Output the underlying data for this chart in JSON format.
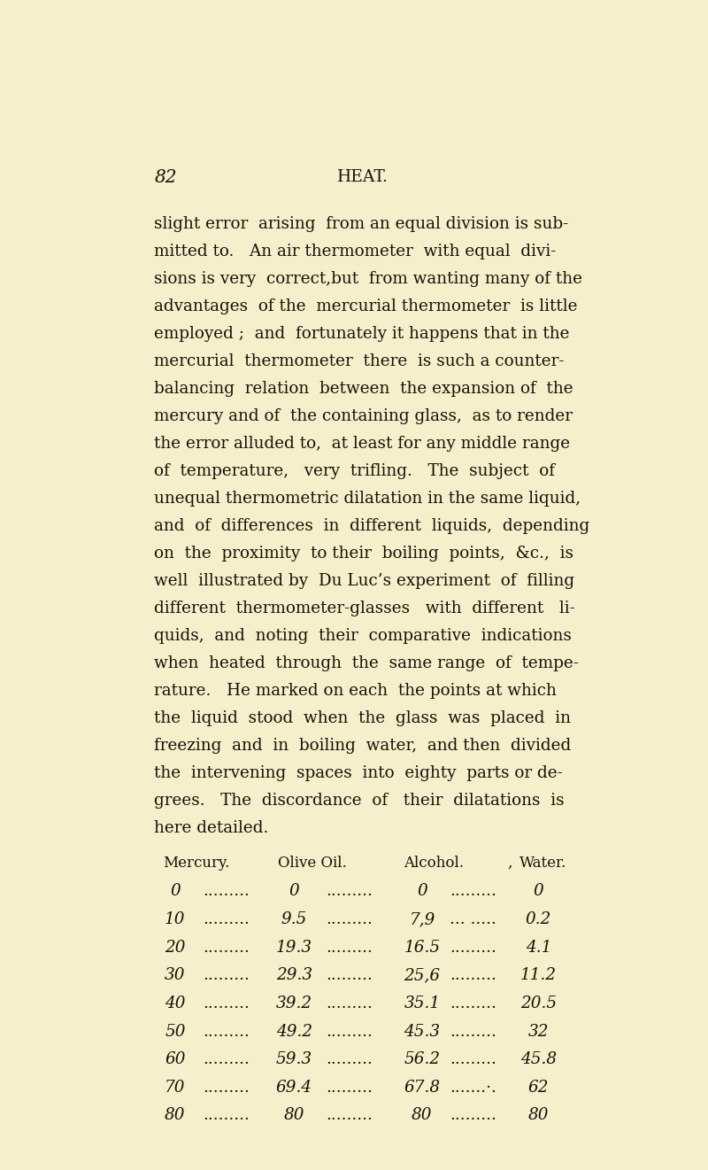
{
  "background_color": "#f5efcc",
  "page_number": "82",
  "header": "HEAT.",
  "body_text": [
    "slight error  arising  from an equal division is sub-",
    "mitted to.   An air thermometer  with equal  divi-",
    "sions is very  correct,but  from wanting many of the",
    "advantages  of the  mercurial thermometer  is little",
    "employed ;  and  fortunately it happens that in the",
    "mercurial  thermometer  there  is such a counter-",
    "balancing  relation  between  the expansion of  the",
    "mercury and of  the containing glass,  as to render",
    "the error alluded to,  at least for any middle range",
    "of  temperature,   very  trifling.   The  subject  of",
    "unequal thermometric dilatation in the same liquid,",
    "and  of  differences  in  different  liquids,  depending",
    "on  the  proximity  to their  boiling  points,  &c.,  is",
    "well  illustrated by  Du Luc’s experiment  of  filling",
    "different  thermometer-glasses   with  different   li-",
    "quids,  and  noting  their  comparative  indications",
    "when  heated  through  the  same range  of  tempe-",
    "rature.   He marked on each  the points at which",
    "the  liquid  stood  when  the  glass  was  placed  in",
    "freezing  and  in  boiling  water,  and then  divided",
    "the  intervening  spaces  into  eighty  parts or de-",
    "grees.   The  discordance  of   their  dilatations  is",
    "here detailed."
  ],
  "table_headers": [
    "Mercury.",
    "Olive Oil.",
    "Alcohol.",
    "Water."
  ],
  "table_data": [
    [
      "0",
      "0",
      "0",
      "0"
    ],
    [
      "10",
      "9.5",
      "7,9",
      "0.2"
    ],
    [
      "20",
      "19.3",
      "16.5",
      "4.1"
    ],
    [
      "30",
      "29.3",
      "25,6",
      "11.2"
    ],
    [
      "40",
      "39.2",
      "35.1",
      "20.5"
    ],
    [
      "50",
      "49.2",
      "45.3",
      "32"
    ],
    [
      "60",
      "59.3",
      "56.2",
      "45.8"
    ],
    [
      "70",
      "69.4",
      "67.8",
      "62"
    ],
    [
      "80",
      "80",
      "80",
      "80"
    ]
  ],
  "col1_dots": [
    ".........",
    ".........",
    ".........",
    ".........",
    ".........",
    ".........",
    ".........",
    ".........",
    "........."
  ],
  "col2_dots": [
    ".........",
    ".........",
    ".........",
    ".........",
    ".........",
    ".........",
    ".........",
    ".........",
    "........."
  ],
  "col3_dots": [
    ".........",
    "... .....",
    ".........",
    ".........",
    ".........",
    ".........",
    ".........",
    ".......·.",
    "........."
  ],
  "text_color": "#1a1008",
  "font_size_body": 13.2,
  "font_size_header_col": 12.0,
  "font_size_table": 13.2,
  "page_num_size": 14.5,
  "header_text_size": 13.5
}
